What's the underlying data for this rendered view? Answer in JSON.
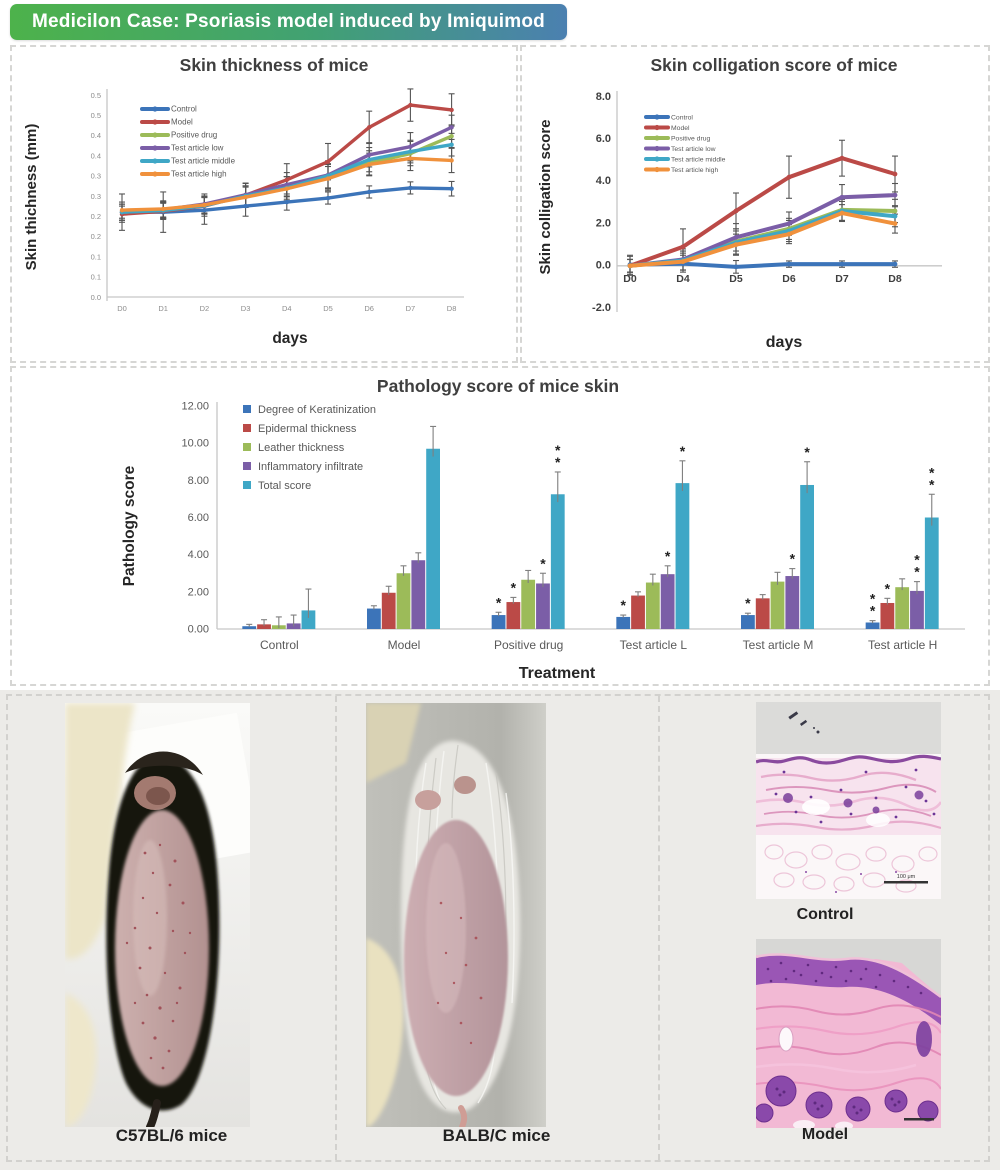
{
  "header": {
    "title": "Medicilon Case: Psoriasis model induced by Imiquimod",
    "gradient_left": "#4db24b",
    "gradient_mid": "#41a173",
    "gradient_right": "#4b80b0"
  },
  "palette": {
    "control": "#3c74b9",
    "model": "#bb4a47",
    "positive_drug": "#9cbb59",
    "test_low": "#7b5ea7",
    "test_middle": "#3fa7c6",
    "test_high": "#f0913c"
  },
  "chart_data": [
    {
      "type": "line",
      "title": "Skin thickness of mice",
      "xlabel": "days",
      "ylabel": "Skin thichness (mm)",
      "x": [
        "D0",
        "D1",
        "D2",
        "D3",
        "D4",
        "D5",
        "D6",
        "D7",
        "D8"
      ],
      "ylim": [
        0,
        0.5
      ],
      "ytick_values": [
        0,
        0.05,
        0.1,
        0.15,
        0.2,
        0.25,
        0.3,
        0.35,
        0.4,
        0.45,
        0.5
      ],
      "ytick_labels": [
        "0.0",
        "0.1",
        "0.1",
        "0.2",
        "0.2",
        "0.3",
        "0.3",
        "0.4",
        "0.4",
        "0.5",
        "0.5"
      ],
      "grid": false,
      "legend_position": "top-left-inside",
      "series": [
        {
          "name": "Control",
          "color": "#3c74b9",
          "values": [
            0.21,
            0.21,
            0.215,
            0.225,
            0.235,
            0.245,
            0.26,
            0.27,
            0.268
          ],
          "err": [
            0.045,
            0.05,
            0.035,
            0.025,
            0.02,
            0.015,
            0.015,
            0.015,
            0.018
          ]
        },
        {
          "name": "Model",
          "color": "#bb4a47",
          "values": [
            0.205,
            0.212,
            0.225,
            0.252,
            0.29,
            0.335,
            0.42,
            0.475,
            0.463
          ],
          "err": [
            0.02,
            0.02,
            0.025,
            0.03,
            0.04,
            0.045,
            0.04,
            0.04,
            0.04
          ]
        },
        {
          "name": "Positive drug",
          "color": "#9cbb59",
          "values": [
            0.21,
            0.215,
            0.227,
            0.25,
            0.268,
            0.298,
            0.332,
            0.355,
            0.398
          ],
          "err": [
            0.02,
            0.02,
            0.02,
            0.025,
            0.03,
            0.03,
            0.03,
            0.03,
            0.028
          ]
        },
        {
          "name": "Test article low",
          "color": "#7b5ea7",
          "values": [
            0.21,
            0.216,
            0.23,
            0.253,
            0.278,
            0.302,
            0.352,
            0.372,
            0.42
          ],
          "err": [
            0.02,
            0.02,
            0.025,
            0.028,
            0.03,
            0.035,
            0.03,
            0.035,
            0.03
          ]
        },
        {
          "name": "Test article middle",
          "color": "#3fa7c6",
          "values": [
            0.21,
            0.214,
            0.226,
            0.25,
            0.27,
            0.3,
            0.34,
            0.36,
            0.377
          ],
          "err": [
            0.02,
            0.02,
            0.02,
            0.025,
            0.028,
            0.03,
            0.03,
            0.028,
            0.028
          ]
        },
        {
          "name": "Test article high",
          "color": "#f0913c",
          "values": [
            0.215,
            0.218,
            0.228,
            0.247,
            0.268,
            0.293,
            0.328,
            0.343,
            0.338
          ],
          "err": [
            0.02,
            0.02,
            0.02,
            0.025,
            0.03,
            0.03,
            0.028,
            0.03,
            0.03
          ]
        }
      ]
    },
    {
      "type": "line",
      "title": "Skin colligation score of mice",
      "xlabel": "days",
      "ylabel": "Skin colligation score",
      "x": [
        "D0",
        "D4",
        "D5",
        "D6",
        "D7",
        "D8"
      ],
      "ylim": [
        -2,
        8
      ],
      "ytick_values": [
        8,
        6,
        4,
        2,
        0,
        -2
      ],
      "ytick_labels": [
        "8.0",
        "6.0",
        "4.0",
        "2.0",
        "0.0",
        "-2.0"
      ],
      "grid": false,
      "legend_position": "top-left-inside",
      "series": [
        {
          "name": "Control",
          "color": "#3c74b9",
          "values": [
            0.05,
            0.1,
            -0.05,
            0.08,
            0.08,
            0.08
          ],
          "err": [
            0.45,
            0.4,
            0.3,
            0.15,
            0.15,
            0.15
          ]
        },
        {
          "name": "Model",
          "color": "#bb4a47",
          "values": [
            0,
            0.9,
            2.6,
            4.2,
            5.1,
            4.35
          ],
          "err": [
            0.45,
            0.85,
            0.85,
            1.0,
            0.85,
            0.85
          ]
        },
        {
          "name": "Positive drug",
          "color": "#9cbb59",
          "values": [
            0,
            0.25,
            1.15,
            1.75,
            2.65,
            2.6
          ],
          "err": [
            0.3,
            0.45,
            0.6,
            0.5,
            0.5,
            0.55
          ]
        },
        {
          "name": "Test article low",
          "color": "#7b5ea7",
          "values": [
            0,
            0.3,
            1.35,
            2.0,
            3.25,
            3.35
          ],
          "err": [
            0.3,
            0.5,
            0.65,
            0.55,
            0.6,
            0.55
          ]
        },
        {
          "name": "Test article middle",
          "color": "#3fa7c6",
          "values": [
            0,
            0.25,
            1.1,
            1.65,
            2.6,
            2.35
          ],
          "err": [
            0.3,
            0.45,
            0.55,
            0.5,
            0.45,
            0.5
          ]
        },
        {
          "name": "Test article high",
          "color": "#f0913c",
          "values": [
            0,
            0.2,
            1.0,
            1.5,
            2.5,
            2.0
          ],
          "err": [
            0.3,
            0.4,
            0.5,
            0.45,
            0.4,
            0.45
          ]
        }
      ]
    },
    {
      "type": "bar",
      "title": "Pathology score of mice skin",
      "xlabel": "Treatment",
      "ylabel": "Pathology score",
      "categories": [
        "Control",
        "Model",
        "Positive drug",
        "Test article L",
        "Test article M",
        "Test article H"
      ],
      "ylim": [
        0,
        12
      ],
      "ytick_values": [
        0,
        2,
        4,
        6,
        8,
        10,
        12
      ],
      "ytick_labels": [
        "0.00",
        "2.00",
        "4.00",
        "6.00",
        "8.00",
        "10.00",
        "12.00"
      ],
      "grid": false,
      "legend_position": "top-left-inside",
      "series": [
        {
          "name": "Degree of Keratinization",
          "color": "#3c74b9",
          "values": [
            0.15,
            1.1,
            0.75,
            0.65,
            0.75,
            0.35
          ],
          "err": [
            0.1,
            0.15,
            0.15,
            0.1,
            0.1,
            0.1
          ],
          "sig": [
            "",
            "",
            "*",
            "*",
            "*",
            "**"
          ]
        },
        {
          "name": "Epidermal thickness",
          "color": "#bb4a47",
          "values": [
            0.25,
            1.95,
            1.45,
            1.8,
            1.65,
            1.4
          ],
          "err": [
            0.25,
            0.35,
            0.25,
            0.2,
            0.2,
            0.25
          ],
          "sig": [
            "",
            "",
            "*",
            "",
            "",
            "*"
          ]
        },
        {
          "name": "Leather thickness",
          "color": "#9cbb59",
          "values": [
            0.2,
            3.0,
            2.65,
            2.5,
            2.55,
            2.25
          ],
          "err": [
            0.45,
            0.4,
            0.5,
            0.45,
            0.5,
            0.45
          ],
          "sig": [
            "",
            "",
            "",
            "",
            "",
            ""
          ]
        },
        {
          "name": "Inflammatory infiltrate",
          "color": "#7b5ea7",
          "values": [
            0.3,
            3.7,
            2.45,
            2.95,
            2.85,
            2.05
          ],
          "err": [
            0.45,
            0.4,
            0.55,
            0.45,
            0.4,
            0.5
          ],
          "sig": [
            "",
            "",
            "*",
            "*",
            "*",
            "**"
          ]
        },
        {
          "name": "Total score",
          "color": "#3fa7c6",
          "values": [
            1.0,
            9.7,
            7.25,
            7.85,
            7.75,
            6.0
          ],
          "err": [
            1.15,
            1.2,
            1.2,
            1.2,
            1.25,
            1.25
          ],
          "sig": [
            "",
            "",
            "**",
            "*",
            "*",
            "**"
          ]
        }
      ]
    }
  ],
  "photos": {
    "mouse1_caption": "C57BL/6 mice",
    "mouse2_caption": "BALB/C mice",
    "hist1_caption": "Control",
    "hist2_caption": "Model",
    "scale_label": "100 μm"
  }
}
